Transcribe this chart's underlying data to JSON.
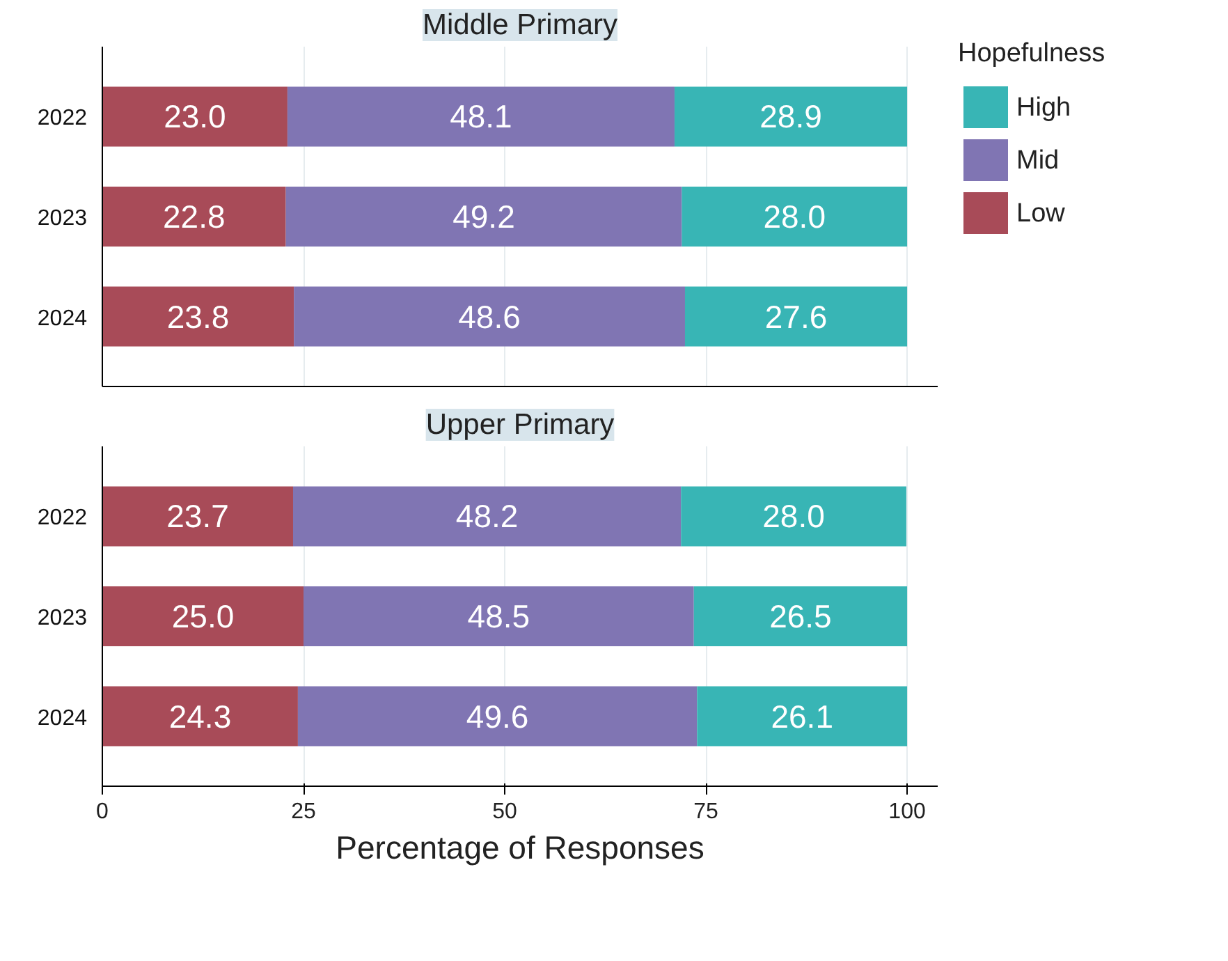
{
  "chart_data": [
    {
      "type": "bar",
      "orientation": "horizontal",
      "stacked": true,
      "title": "Middle Primary",
      "categories": [
        "2022",
        "2023",
        "2024"
      ],
      "xlim": [
        0,
        103.8
      ],
      "xticks": [
        0,
        25,
        50,
        75,
        100
      ],
      "tick_labels": "y",
      "grid": "x",
      "legend": "right",
      "legend_title": "Hopefulness",
      "series": [
        {
          "name": "Low",
          "color": "#a84b58",
          "values": [
            23.0,
            22.8,
            23.8
          ],
          "value_labels": [
            "23.0",
            "22.8",
            "23.8"
          ]
        },
        {
          "name": "Mid",
          "color": "#8075b3",
          "values": [
            48.1,
            49.2,
            48.6
          ],
          "value_labels": [
            "48.1",
            "49.2",
            "48.6"
          ]
        },
        {
          "name": "High",
          "color": "#38b5b5",
          "values": [
            28.9,
            28.0,
            27.6
          ],
          "value_labels": [
            "28.9",
            "28.0",
            "27.6"
          ]
        }
      ]
    },
    {
      "type": "bar",
      "orientation": "horizontal",
      "stacked": true,
      "title": "Upper Primary",
      "categories": [
        "2022",
        "2023",
        "2024"
      ],
      "xlim": [
        0,
        103.8
      ],
      "xticks": [
        0,
        25,
        50,
        75,
        100
      ],
      "xlabel": "Percentage of Responses",
      "grid": "x",
      "series": [
        {
          "color": "#a84b58",
          "values": [
            23.7,
            25.0,
            24.3
          ],
          "value_labels": [
            "23.7",
            "25.0",
            "24.3"
          ]
        },
        {
          "color": "#8075b3",
          "values": [
            48.2,
            48.5,
            49.6
          ],
          "value_labels": [
            "48.2",
            "48.5",
            "49.6"
          ]
        },
        {
          "color": "#38b5b5",
          "values": [
            28.0,
            26.5,
            26.1
          ],
          "value_labels": [
            "28.0",
            "26.5",
            "26.1"
          ]
        }
      ]
    }
  ]
}
